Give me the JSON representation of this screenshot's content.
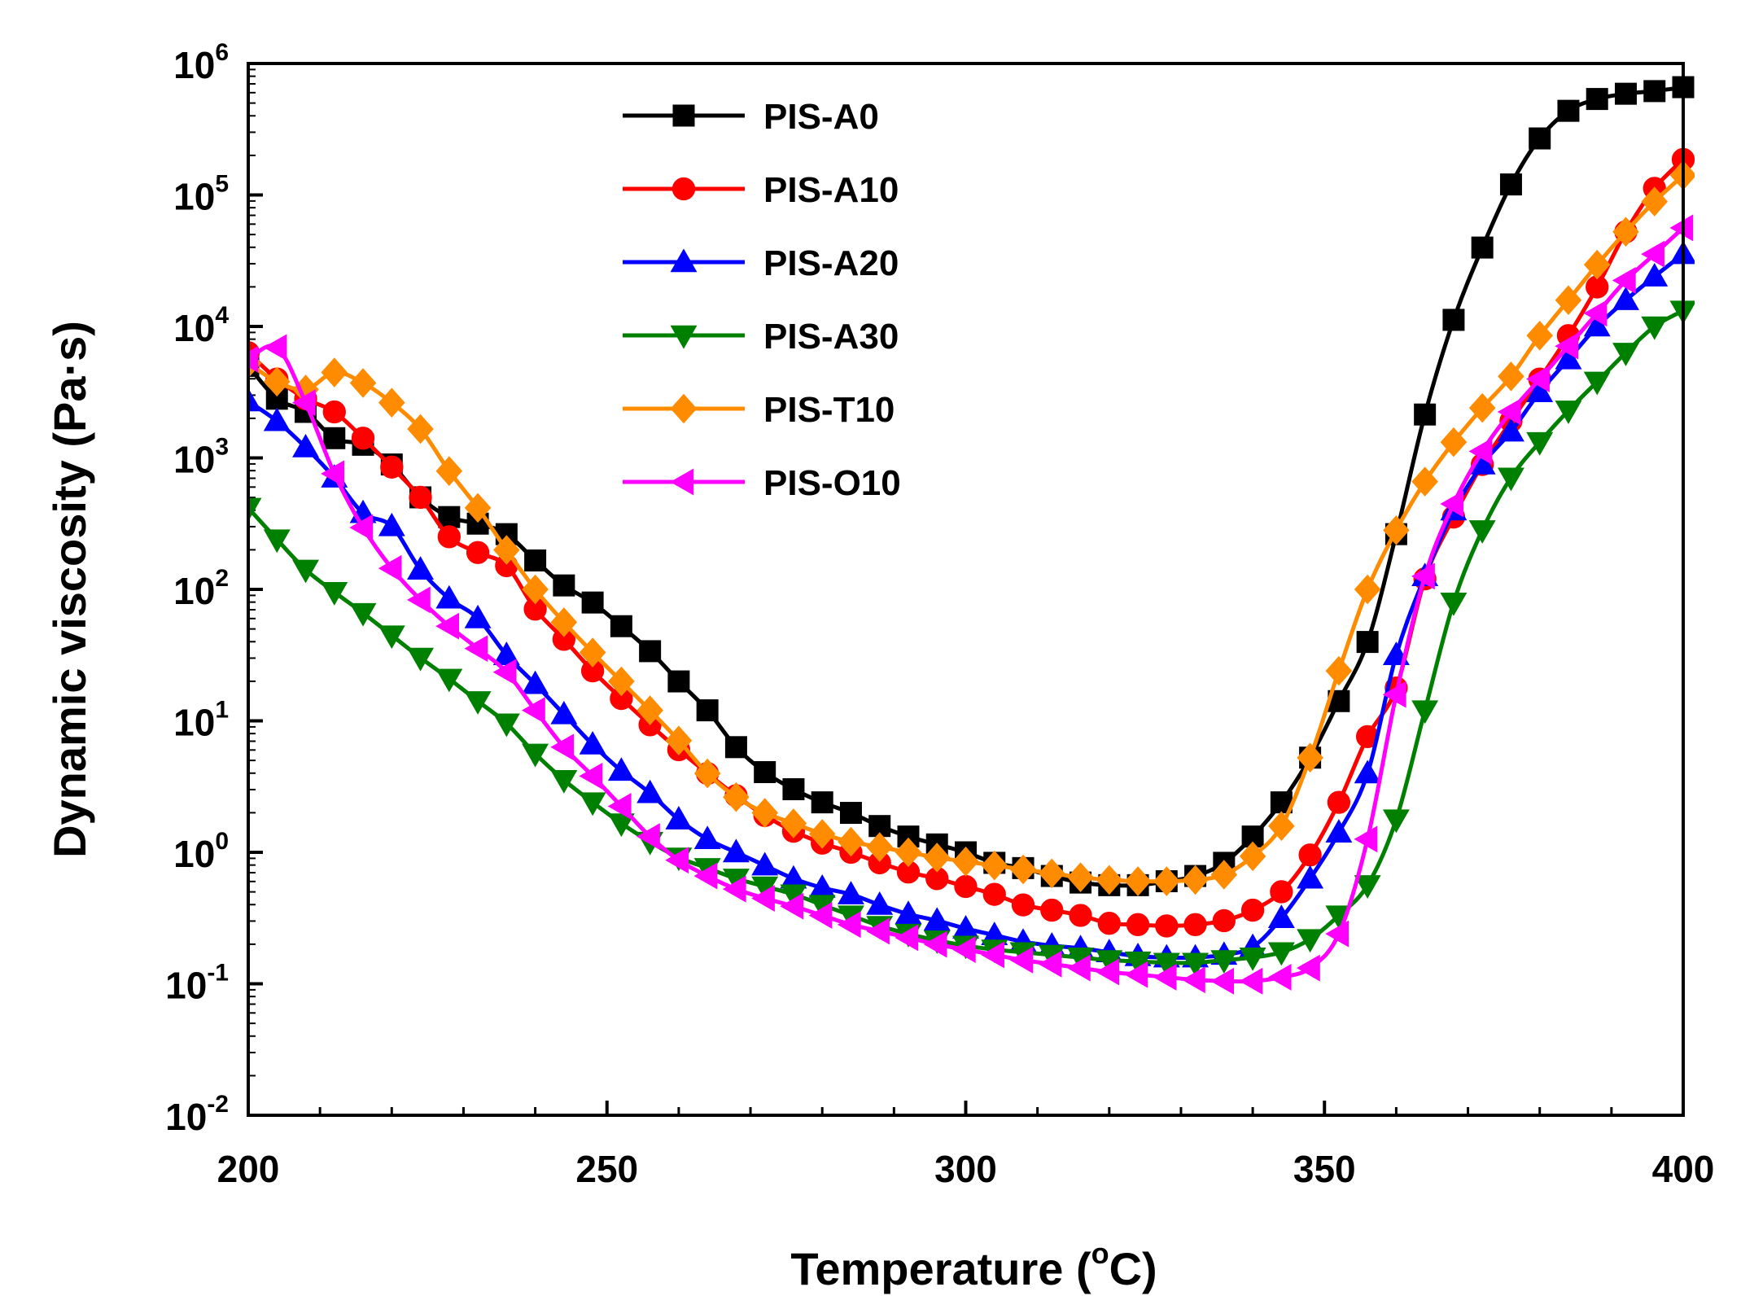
{
  "chart_data": {
    "type": "line",
    "title": "",
    "xlabel": "Temperature (",
    "xlabel_sup": "o",
    "xlabel_tail": "C)",
    "ylabel": "Dynamic viscosity (Pa·s)",
    "xlim": [
      200,
      400
    ],
    "ylim_log10": [
      -2,
      6
    ],
    "xticks": [
      {
        "value": 200,
        "label": "200"
      },
      {
        "value": 250,
        "label": "250"
      },
      {
        "value": 300,
        "label": "300"
      },
      {
        "value": 350,
        "label": "350"
      },
      {
        "value": 400,
        "label": "400"
      }
    ],
    "yticks": [
      {
        "exp": -2,
        "base": "10",
        "sup": "-2"
      },
      {
        "exp": -1,
        "base": "10",
        "sup": "-1"
      },
      {
        "exp": 0,
        "base": "10",
        "sup": "0"
      },
      {
        "exp": 1,
        "base": "10",
        "sup": "1"
      },
      {
        "exp": 2,
        "base": "10",
        "sup": "2"
      },
      {
        "exp": 3,
        "base": "10",
        "sup": "3"
      },
      {
        "exp": 4,
        "base": "10",
        "sup": "4"
      },
      {
        "exp": 5,
        "base": "10",
        "sup": "5"
      },
      {
        "exp": 6,
        "base": "10",
        "sup": "6"
      }
    ],
    "legend_position": "top-center",
    "marker_step": 4,
    "series": [
      {
        "name": "PIS-A0",
        "color": "#000000",
        "marker": "square",
        "x": [
          200,
          204,
          208,
          212,
          216,
          220,
          224,
          228,
          232,
          236,
          240,
          244,
          248,
          252,
          256,
          260,
          264,
          268,
          272,
          276,
          280,
          284,
          288,
          292,
          296,
          300,
          304,
          308,
          312,
          316,
          320,
          324,
          328,
          332,
          336,
          340,
          344,
          348,
          352,
          356,
          360,
          364,
          368,
          372,
          376,
          380,
          384,
          388,
          392,
          396,
          400
        ],
        "y_log10": [
          3.7,
          3.45,
          3.35,
          3.15,
          3.1,
          2.95,
          2.7,
          2.55,
          2.5,
          2.42,
          2.22,
          2.03,
          1.9,
          1.72,
          1.53,
          1.3,
          1.08,
          0.8,
          0.61,
          0.48,
          0.38,
          0.3,
          0.2,
          0.12,
          0.06,
          0.0,
          -0.08,
          -0.12,
          -0.18,
          -0.23,
          -0.25,
          -0.25,
          -0.22,
          -0.18,
          -0.08,
          0.12,
          0.38,
          0.72,
          1.15,
          1.6,
          2.42,
          3.33,
          4.05,
          4.6,
          5.08,
          5.43,
          5.64,
          5.73,
          5.77,
          5.79,
          5.82
        ]
      },
      {
        "name": "PIS-A10",
        "color": "#ff0000",
        "marker": "circle",
        "x": [
          200,
          204,
          208,
          212,
          216,
          220,
          224,
          228,
          232,
          236,
          240,
          244,
          248,
          252,
          256,
          260,
          264,
          268,
          272,
          276,
          280,
          284,
          288,
          292,
          296,
          300,
          304,
          308,
          312,
          316,
          320,
          324,
          328,
          332,
          336,
          340,
          344,
          348,
          352,
          356,
          360,
          364,
          368,
          372,
          376,
          380,
          384,
          388,
          392,
          396,
          400
        ],
        "y_log10": [
          3.8,
          3.6,
          3.45,
          3.35,
          3.15,
          2.93,
          2.7,
          2.4,
          2.28,
          2.18,
          1.85,
          1.62,
          1.38,
          1.17,
          0.97,
          0.78,
          0.6,
          0.43,
          0.28,
          0.16,
          0.07,
          0.0,
          -0.08,
          -0.15,
          -0.2,
          -0.26,
          -0.32,
          -0.4,
          -0.44,
          -0.48,
          -0.54,
          -0.55,
          -0.56,
          -0.55,
          -0.52,
          -0.44,
          -0.3,
          -0.02,
          0.38,
          0.88,
          1.25,
          2.08,
          2.55,
          2.95,
          3.28,
          3.6,
          3.93,
          4.3,
          4.72,
          5.05,
          5.27
        ]
      },
      {
        "name": "PIS-A20",
        "color": "#0000ff",
        "marker": "triangle-up",
        "x": [
          200,
          204,
          208,
          212,
          216,
          220,
          224,
          228,
          232,
          236,
          240,
          244,
          248,
          252,
          256,
          260,
          264,
          268,
          272,
          276,
          280,
          284,
          288,
          292,
          296,
          300,
          304,
          308,
          312,
          316,
          320,
          324,
          328,
          332,
          336,
          340,
          344,
          348,
          352,
          356,
          360,
          364,
          368,
          372,
          376,
          380,
          384,
          388,
          392,
          396,
          400
        ],
        "y_log10": [
          3.43,
          3.28,
          3.08,
          2.85,
          2.58,
          2.48,
          2.15,
          1.93,
          1.78,
          1.5,
          1.28,
          1.05,
          0.82,
          0.62,
          0.45,
          0.25,
          0.1,
          0.0,
          -0.1,
          -0.2,
          -0.27,
          -0.32,
          -0.4,
          -0.47,
          -0.52,
          -0.58,
          -0.63,
          -0.68,
          -0.71,
          -0.73,
          -0.76,
          -0.79,
          -0.8,
          -0.8,
          -0.78,
          -0.72,
          -0.5,
          -0.2,
          0.15,
          0.6,
          1.5,
          2.1,
          2.6,
          2.95,
          3.2,
          3.5,
          3.75,
          4.0,
          4.2,
          4.38,
          4.55
        ]
      },
      {
        "name": "PIS-A30",
        "color": "#008000",
        "marker": "triangle-down",
        "x": [
          200,
          204,
          208,
          212,
          216,
          220,
          224,
          228,
          232,
          236,
          240,
          244,
          248,
          252,
          256,
          260,
          264,
          268,
          272,
          276,
          280,
          284,
          288,
          292,
          296,
          300,
          304,
          308,
          312,
          316,
          320,
          324,
          328,
          332,
          336,
          340,
          344,
          348,
          352,
          356,
          360,
          364,
          368,
          372,
          376,
          380,
          384,
          388,
          392,
          396,
          400
        ],
        "y_log10": [
          2.62,
          2.38,
          2.15,
          1.98,
          1.82,
          1.65,
          1.48,
          1.32,
          1.15,
          0.98,
          0.75,
          0.55,
          0.38,
          0.22,
          0.08,
          -0.04,
          -0.12,
          -0.2,
          -0.26,
          -0.32,
          -0.4,
          -0.48,
          -0.56,
          -0.62,
          -0.67,
          -0.71,
          -0.74,
          -0.76,
          -0.78,
          -0.8,
          -0.82,
          -0.83,
          -0.84,
          -0.84,
          -0.82,
          -0.8,
          -0.76,
          -0.66,
          -0.48,
          -0.25,
          0.25,
          1.08,
          1.9,
          2.45,
          2.85,
          3.12,
          3.36,
          3.58,
          3.8,
          4.0,
          4.12
        ]
      },
      {
        "name": "PIS-T10",
        "color": "#ff8c00",
        "marker": "diamond",
        "x": [
          200,
          204,
          208,
          212,
          216,
          220,
          224,
          228,
          232,
          236,
          240,
          244,
          248,
          252,
          256,
          260,
          264,
          268,
          272,
          276,
          280,
          284,
          288,
          292,
          296,
          300,
          304,
          308,
          312,
          316,
          320,
          324,
          328,
          332,
          336,
          340,
          344,
          348,
          352,
          356,
          360,
          364,
          368,
          372,
          376,
          380,
          384,
          388,
          392,
          396,
          400
        ],
        "y_log10": [
          3.72,
          3.58,
          3.52,
          3.65,
          3.57,
          3.42,
          3.22,
          2.9,
          2.62,
          2.3,
          2.0,
          1.75,
          1.52,
          1.3,
          1.08,
          0.85,
          0.6,
          0.42,
          0.3,
          0.22,
          0.14,
          0.08,
          0.04,
          0.0,
          -0.04,
          -0.07,
          -0.1,
          -0.13,
          -0.16,
          -0.19,
          -0.21,
          -0.22,
          -0.22,
          -0.21,
          -0.17,
          -0.03,
          0.2,
          0.72,
          1.38,
          2.0,
          2.45,
          2.82,
          3.12,
          3.38,
          3.62,
          3.93,
          4.2,
          4.47,
          4.72,
          4.95,
          5.15
        ]
      },
      {
        "name": "PIS-O10",
        "color": "#ff00ff",
        "marker": "triangle-left",
        "x": [
          200,
          204,
          208,
          212,
          216,
          220,
          224,
          228,
          232,
          236,
          240,
          244,
          248,
          252,
          256,
          260,
          264,
          268,
          272,
          276,
          280,
          284,
          288,
          292,
          296,
          300,
          304,
          308,
          312,
          316,
          320,
          324,
          328,
          332,
          336,
          340,
          344,
          348,
          352,
          356,
          360,
          364,
          368,
          372,
          376,
          380,
          384,
          388,
          392,
          396,
          400
        ],
        "y_log10": [
          3.75,
          3.84,
          3.42,
          2.88,
          2.47,
          2.16,
          1.92,
          1.72,
          1.55,
          1.37,
          1.08,
          0.8,
          0.58,
          0.35,
          0.12,
          -0.06,
          -0.18,
          -0.28,
          -0.35,
          -0.41,
          -0.48,
          -0.55,
          -0.6,
          -0.65,
          -0.7,
          -0.74,
          -0.78,
          -0.82,
          -0.85,
          -0.88,
          -0.91,
          -0.93,
          -0.95,
          -0.97,
          -0.98,
          -0.98,
          -0.95,
          -0.88,
          -0.62,
          0.1,
          1.2,
          2.1,
          2.65,
          3.05,
          3.35,
          3.6,
          3.85,
          4.1,
          4.35,
          4.55,
          4.75
        ]
      }
    ]
  }
}
